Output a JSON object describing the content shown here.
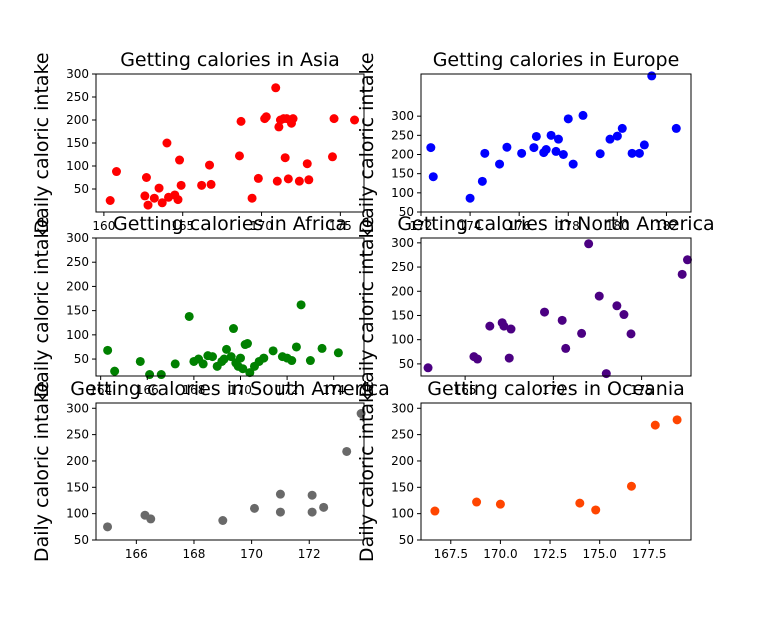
{
  "figure": {
    "background": "#ffffff"
  },
  "chart_data": [
    {
      "type": "scatter",
      "title": "Getting calories in Asia",
      "xlabel": "",
      "ylabel": "Daily caloric intake",
      "color": "#ff0000",
      "xlim": [
        159.5,
        176.5
      ],
      "ylim": [
        0,
        300
      ],
      "xticks": [
        160,
        165,
        170,
        175
      ],
      "yticks": [
        50,
        100,
        150,
        200,
        250,
        300
      ],
      "grid": false,
      "x": [
        160.4,
        160.8,
        162.6,
        162.7,
        162.8,
        163.2,
        163.5,
        163.7,
        164.0,
        164.1,
        164.5,
        164.7,
        164.8,
        164.9,
        166.2,
        166.7,
        166.8,
        168.6,
        168.7,
        169.4,
        169.8,
        170.2,
        170.3,
        170.9,
        171.0,
        171.1,
        171.2,
        171.4,
        171.5,
        171.6,
        171.7,
        171.9,
        172.0,
        172.4,
        172.9,
        173.0,
        174.5,
        174.6,
        175.9
      ],
      "y": [
        25,
        88,
        35,
        75,
        15,
        30,
        52,
        20,
        150,
        32,
        37,
        27,
        113,
        58,
        58,
        102,
        60,
        122,
        197,
        30,
        73,
        203,
        207,
        270,
        67,
        185,
        200,
        203,
        118,
        203,
        72,
        193,
        203,
        67,
        105,
        70,
        120,
        203,
        200
      ]
    },
    {
      "type": "scatter",
      "title": "Getting calories in Europe",
      "xlabel": "",
      "ylabel": "Daily caloric intake",
      "color": "#0000ff",
      "xlim": [
        172.0,
        183.0
      ],
      "ylim": [
        50,
        410
      ],
      "xticks": [
        172,
        174,
        176,
        178,
        180,
        182
      ],
      "yticks": [
        50,
        100,
        150,
        200,
        250,
        300
      ],
      "grid": false,
      "x": [
        172.4,
        172.5,
        174.0,
        174.5,
        174.6,
        175.2,
        175.5,
        176.1,
        176.6,
        176.7,
        177.0,
        177.1,
        177.3,
        177.5,
        177.6,
        177.8,
        178.0,
        178.2,
        178.6,
        179.3,
        179.7,
        180.0,
        180.2,
        180.6,
        180.9,
        181.1,
        181.4,
        182.4
      ],
      "y": [
        218,
        142,
        86,
        130,
        203,
        175,
        219,
        203,
        218,
        247,
        205,
        213,
        250,
        208,
        240,
        200,
        293,
        175,
        302,
        202,
        240,
        248,
        268,
        203,
        203,
        225,
        405,
        268
      ]
    },
    {
      "type": "scatter",
      "title": "Getting calories in Africa",
      "xlabel": "",
      "ylabel": "Daily caloric intake",
      "color": "#008000",
      "xlim": [
        163.8,
        175.3
      ],
      "ylim": [
        15,
        300
      ],
      "xticks": [
        164,
        166,
        168,
        170,
        172,
        174
      ],
      "yticks": [
        50,
        100,
        150,
        200,
        250,
        300
      ],
      "grid": false,
      "x": [
        164.3,
        164.6,
        165.7,
        166.1,
        166.6,
        167.2,
        167.8,
        168.0,
        168.2,
        168.4,
        168.6,
        168.8,
        169.0,
        169.2,
        169.3,
        169.4,
        169.6,
        169.7,
        169.8,
        169.9,
        170.0,
        170.1,
        170.2,
        170.3,
        170.4,
        170.6,
        170.8,
        171.0,
        171.4,
        171.8,
        172.0,
        172.2,
        172.4,
        172.6,
        173.0,
        173.5,
        174.2
      ],
      "y": [
        68,
        25,
        45,
        18,
        18,
        40,
        138,
        45,
        50,
        40,
        57,
        55,
        35,
        45,
        50,
        70,
        55,
        113,
        42,
        35,
        52,
        30,
        80,
        82,
        22,
        35,
        45,
        52,
        67,
        55,
        52,
        47,
        75,
        162,
        47,
        72,
        63
      ]
    },
    {
      "type": "scatter",
      "title": "Getting calories in North America",
      "xlabel": "",
      "ylabel": "Daily caloric intake",
      "color": "#4b0082",
      "xlim": [
        162.5,
        177.8
      ],
      "ylim": [
        25,
        310
      ],
      "xticks": [
        165,
        170,
        175
      ],
      "yticks": [
        50,
        100,
        150,
        200,
        250,
        300
      ],
      "grid": false,
      "x": [
        162.9,
        165.5,
        165.7,
        166.4,
        167.1,
        167.2,
        167.5,
        167.6,
        169.5,
        170.5,
        170.7,
        171.6,
        172.0,
        172.6,
        173.0,
        173.6,
        174.0,
        174.4,
        177.3,
        177.6
      ],
      "y": [
        42,
        65,
        60,
        128,
        135,
        128,
        62,
        122,
        157,
        140,
        82,
        113,
        298,
        190,
        30,
        170,
        152,
        112,
        235,
        265
      ]
    },
    {
      "type": "scatter",
      "title": "Getting calories in South America",
      "xlabel": "",
      "ylabel": "Daily caloric intake",
      "color": "#696969",
      "xlim": [
        164.6,
        173.9
      ],
      "ylim": [
        50,
        310
      ],
      "xticks": [
        166,
        168,
        170,
        172,
        174
      ],
      "yticks": [
        50,
        100,
        150,
        200,
        250,
        300
      ],
      "grid": false,
      "x": [
        165.0,
        166.3,
        166.5,
        169.0,
        170.1,
        171.0,
        171.0,
        172.1,
        172.1,
        172.5,
        173.3,
        173.8
      ],
      "y": [
        75,
        97,
        90,
        87,
        110,
        137,
        103,
        135,
        103,
        112,
        218,
        290
      ]
    },
    {
      "type": "scatter",
      "title": "Getting calories in Oceania",
      "xlabel": "",
      "ylabel": "Daily caloric intake",
      "color": "#ff4500",
      "xlim": [
        166.0,
        179.6
      ],
      "ylim": [
        50,
        310
      ],
      "xticks": [
        167.5,
        170.0,
        172.5,
        175.0,
        177.5
      ],
      "yticks": [
        50,
        100,
        150,
        200,
        250,
        300
      ],
      "grid": false,
      "x": [
        166.7,
        168.8,
        170.0,
        174.0,
        174.8,
        176.6,
        177.8,
        178.9
      ],
      "y": [
        105,
        122,
        118,
        120,
        107,
        152,
        268,
        278
      ]
    }
  ]
}
